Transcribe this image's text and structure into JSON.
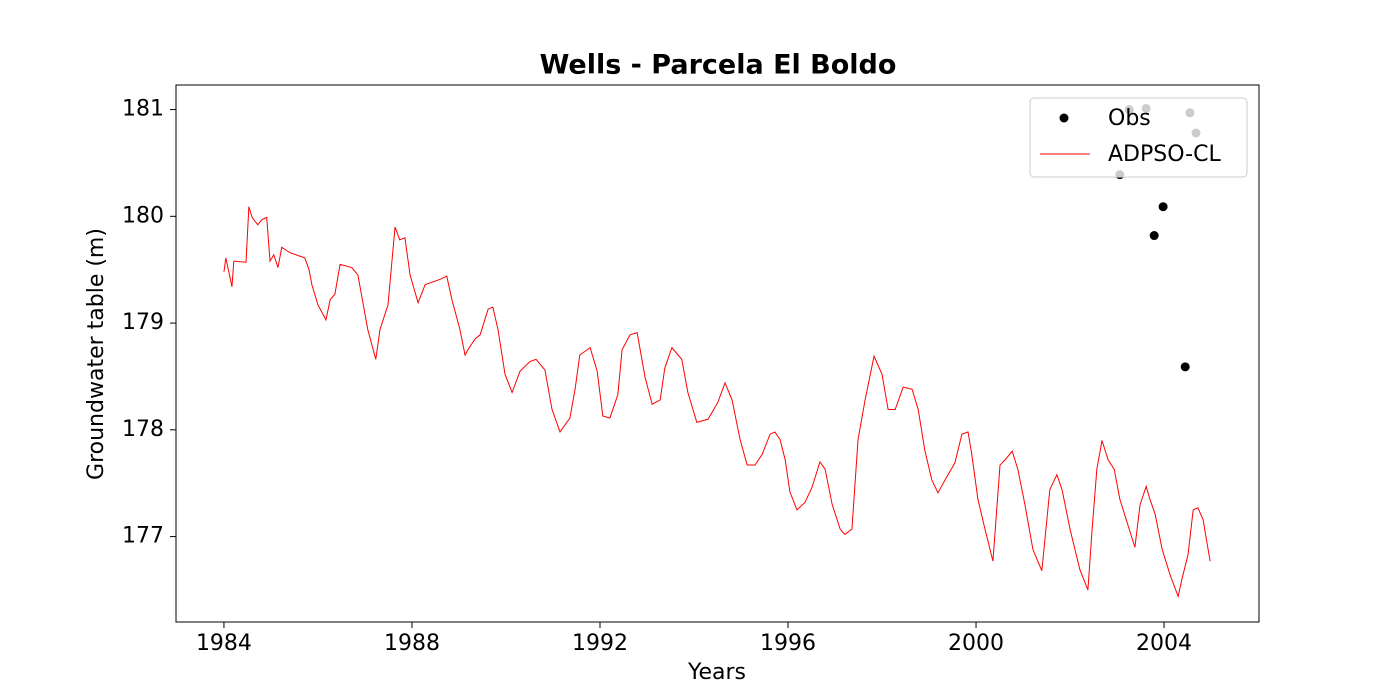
{
  "chart_data": {
    "type": "line",
    "title": "Wells - Parcela El Boldo",
    "xlabel": "Years",
    "ylabel": "Groundwater table (m)",
    "xlim": [
      1982.98,
      2006.02
    ],
    "ylim": [
      176.2,
      181.23
    ],
    "xticks": [
      1984,
      1988,
      1992,
      1996,
      2000,
      2004
    ],
    "yticks": [
      177,
      178,
      179,
      180,
      181
    ],
    "grid": false,
    "legend": "upper right",
    "series": [
      {
        "name": "Obs",
        "color": "#000000",
        "mode": "markers",
        "x": [
          2003.06,
          2003.26,
          2003.62,
          2003.79,
          2003.98,
          2004.45,
          2004.55,
          2004.68
        ],
        "values": [
          180.39,
          181.0,
          181.01,
          179.82,
          180.09,
          178.59,
          180.97,
          180.78
        ]
      },
      {
        "name": "ADPSO-CL",
        "color": "#ff0000",
        "mode": "lines",
        "x": [
          1984.0,
          1984.04,
          1984.17,
          1984.21,
          1984.47,
          1984.53,
          1984.6,
          1984.72,
          1984.81,
          1984.91,
          1984.98,
          1985.06,
          1985.15,
          1985.23,
          1985.4,
          1985.72,
          1985.81,
          1985.87,
          1986.0,
          1986.17,
          1986.26,
          1986.36,
          1986.47,
          1986.72,
          1986.85,
          1987.06,
          1987.23,
          1987.32,
          1987.49,
          1987.64,
          1987.74,
          1987.85,
          1987.96,
          1988.13,
          1988.28,
          1988.6,
          1988.74,
          1988.85,
          1989.02,
          1989.13,
          1989.19,
          1989.34,
          1989.45,
          1989.62,
          1989.72,
          1989.83,
          1989.98,
          1990.13,
          1990.3,
          1990.51,
          1990.64,
          1990.83,
          1990.98,
          1991.15,
          1991.36,
          1991.47,
          1991.57,
          1991.79,
          1991.94,
          1992.06,
          1992.21,
          1992.38,
          1992.47,
          1992.64,
          1992.79,
          1992.96,
          1993.11,
          1993.28,
          1993.38,
          1993.53,
          1993.74,
          1993.87,
          1994.06,
          1994.3,
          1994.51,
          1994.66,
          1994.81,
          1994.98,
          1995.13,
          1995.3,
          1995.45,
          1995.62,
          1995.72,
          1995.83,
          1995.94,
          1996.04,
          1996.19,
          1996.36,
          1996.51,
          1996.68,
          1996.79,
          1996.94,
          1997.11,
          1997.21,
          1997.36,
          1997.49,
          1997.64,
          1997.83,
          1998.0,
          1998.13,
          1998.28,
          1998.45,
          1998.64,
          1998.77,
          1998.91,
          1999.06,
          1999.19,
          1999.34,
          1999.55,
          1999.7,
          1999.83,
          1999.91,
          2000.04,
          2000.19,
          2000.36,
          2000.51,
          2000.62,
          2000.77,
          2000.89,
          2001.04,
          2001.21,
          2001.4,
          2001.57,
          2001.72,
          2001.83,
          2002.0,
          2002.21,
          2002.38,
          2002.47,
          2002.57,
          2002.68,
          2002.81,
          2002.94,
          2003.06,
          2003.23,
          2003.38,
          2003.49,
          2003.62,
          2003.7,
          2003.81,
          2003.96,
          2004.13,
          2004.3,
          2004.38,
          2004.51,
          2004.62,
          2004.72,
          2004.83,
          2004.98
        ],
        "values": [
          179.48,
          179.61,
          179.34,
          179.58,
          179.57,
          180.09,
          179.99,
          179.92,
          179.97,
          179.99,
          179.58,
          179.64,
          179.52,
          179.71,
          179.66,
          179.61,
          179.5,
          179.36,
          179.17,
          179.03,
          179.22,
          179.27,
          179.55,
          179.52,
          179.45,
          178.94,
          178.66,
          178.94,
          179.17,
          179.9,
          179.78,
          179.8,
          179.45,
          179.19,
          179.36,
          179.41,
          179.44,
          179.22,
          178.94,
          178.7,
          178.75,
          178.85,
          178.89,
          179.13,
          179.15,
          178.94,
          178.52,
          178.35,
          178.55,
          178.64,
          178.66,
          178.56,
          178.19,
          177.98,
          178.11,
          178.38,
          178.7,
          178.77,
          178.55,
          178.13,
          178.11,
          178.33,
          178.75,
          178.89,
          178.91,
          178.49,
          178.24,
          178.28,
          178.58,
          178.77,
          178.66,
          178.35,
          178.07,
          178.1,
          178.26,
          178.44,
          178.28,
          177.91,
          177.67,
          177.67,
          177.77,
          177.96,
          177.98,
          177.91,
          177.72,
          177.42,
          177.25,
          177.32,
          177.46,
          177.7,
          177.63,
          177.3,
          177.07,
          177.02,
          177.07,
          177.91,
          178.28,
          178.69,
          178.52,
          178.19,
          178.19,
          178.4,
          178.38,
          178.19,
          177.81,
          177.53,
          177.41,
          177.53,
          177.69,
          177.96,
          177.98,
          177.77,
          177.35,
          177.07,
          176.77,
          177.67,
          177.72,
          177.8,
          177.63,
          177.3,
          176.88,
          176.68,
          177.44,
          177.58,
          177.44,
          177.07,
          176.69,
          176.5,
          177.07,
          177.63,
          177.9,
          177.72,
          177.63,
          177.35,
          177.11,
          176.9,
          177.3,
          177.47,
          177.35,
          177.21,
          176.88,
          176.64,
          176.44,
          176.6,
          176.83,
          177.25,
          177.27,
          177.16,
          176.77
        ]
      }
    ]
  }
}
